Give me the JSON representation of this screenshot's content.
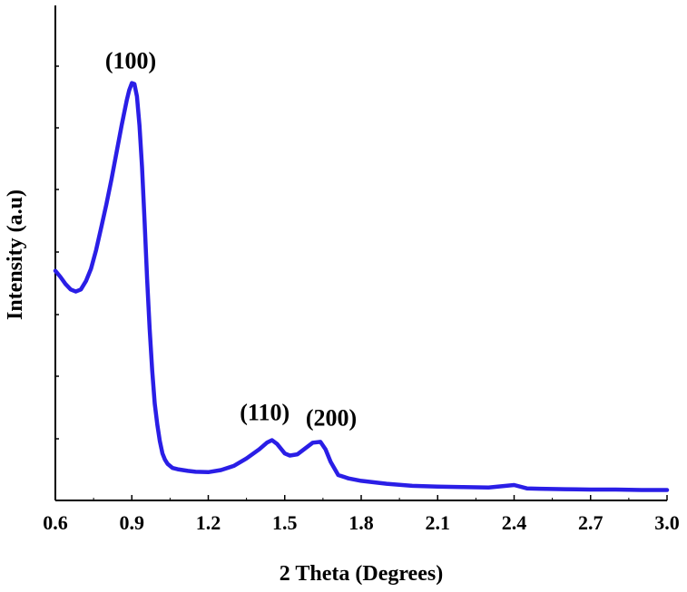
{
  "chart_data": {
    "type": "line",
    "title": "",
    "xlabel": "2 Theta (Degrees)",
    "ylabel": "Intensity (a.u)",
    "xlim": [
      0.6,
      3.0
    ],
    "ylim": [
      0,
      100
    ],
    "x_ticks": [
      "0.6",
      "0.9",
      "1.2",
      "1.5",
      "1.8",
      "2.1",
      "2.4",
      "2.7",
      "3.0"
    ],
    "y_ticks_labeled": false,
    "grid": false,
    "legend": "none",
    "line_color": "#2a1ee6",
    "series": [
      {
        "x": [
          0.6,
          0.62,
          0.64,
          0.66,
          0.68,
          0.7,
          0.72,
          0.74,
          0.76,
          0.78,
          0.8,
          0.82,
          0.84,
          0.86,
          0.88,
          0.89,
          0.9,
          0.91,
          0.92,
          0.93,
          0.94,
          0.95,
          0.96,
          0.97,
          0.98,
          0.99,
          1.0,
          1.01,
          1.02,
          1.03,
          1.04,
          1.06,
          1.08,
          1.1,
          1.12,
          1.15,
          1.2,
          1.25,
          1.3,
          1.35,
          1.4,
          1.43,
          1.45,
          1.47,
          1.5,
          1.52,
          1.55,
          1.58,
          1.61,
          1.64,
          1.66,
          1.68,
          1.71,
          1.75,
          1.8,
          1.9,
          2.0,
          2.1,
          2.2,
          2.3,
          2.4,
          2.45,
          2.5,
          2.6,
          2.7,
          2.8,
          2.9,
          3.0
        ],
        "y": [
          54.0,
          52.5,
          50.8,
          49.5,
          49.0,
          49.5,
          51.5,
          54.5,
          59.0,
          64.5,
          70.0,
          76.0,
          82.5,
          89.0,
          95.0,
          97.5,
          99.2,
          99.0,
          96.0,
          89.0,
          79.0,
          66.0,
          52.0,
          40.0,
          30.0,
          22.0,
          17.0,
          13.0,
          10.0,
          8.5,
          7.5,
          6.5,
          6.2,
          6.0,
          5.8,
          5.6,
          5.5,
          6.0,
          7.0,
          8.8,
          11.0,
          12.6,
          13.2,
          12.3,
          10.0,
          9.5,
          9.8,
          11.2,
          12.6,
          12.8,
          11.0,
          8.0,
          4.8,
          4.0,
          3.4,
          2.7,
          2.2,
          2.0,
          1.9,
          1.8,
          2.4,
          1.6,
          1.5,
          1.4,
          1.3,
          1.3,
          1.2,
          1.2
        ]
      }
    ],
    "annotations": [
      {
        "text": "(100)",
        "x": 0.91,
        "y": 99.2
      },
      {
        "text": "(110)",
        "x": 1.45,
        "y": 13.2
      },
      {
        "text": "(200)",
        "x": 1.64,
        "y": 12.8
      }
    ]
  }
}
